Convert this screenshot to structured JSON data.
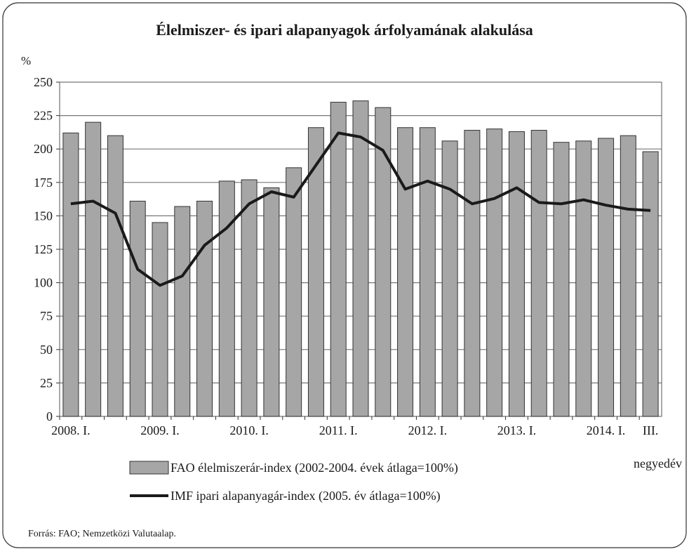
{
  "chart_data": {
    "type": "bar",
    "title": "Élelmiszer- és ipari alapanyagok árfolyamának alakulása",
    "ylabel": "%",
    "xlabel": "negyedév",
    "source": "Forrás: FAO; Nemzetközi Valutaalap.",
    "categories": [
      "2008. I.",
      null,
      null,
      null,
      "2009. I.",
      null,
      null,
      null,
      "2010. I.",
      null,
      null,
      null,
      "2011. I.",
      null,
      null,
      null,
      "2012. I.",
      null,
      null,
      null,
      "2013. I.",
      null,
      null,
      null,
      "2014. I.",
      null,
      "III."
    ],
    "series": [
      {
        "name": "FAO élelmiszerár-index (2002-2004. évek átlaga=100%)",
        "type": "bar",
        "color": "#a6a6a6",
        "values": [
          212,
          220,
          210,
          161,
          145,
          157,
          161,
          176,
          177,
          171,
          186,
          216,
          235,
          236,
          231,
          216,
          216,
          206,
          214,
          215,
          213,
          214,
          205,
          206,
          208,
          210,
          198
        ]
      },
      {
        "name": "IMF ipari alapanyagár-index (2005. év átlaga=100%)",
        "type": "line",
        "color": "#1a1a1a",
        "values": [
          159,
          161,
          152,
          110,
          98,
          105,
          128,
          141,
          159,
          168,
          164,
          188,
          212,
          209,
          199,
          170,
          176,
          170,
          159,
          163,
          171,
          160,
          159,
          162,
          158,
          155,
          154
        ]
      }
    ],
    "ylim": [
      0,
      250
    ],
    "yticks": [
      0,
      25,
      50,
      75,
      100,
      125,
      150,
      175,
      200,
      225,
      250
    ],
    "grid": true
  }
}
